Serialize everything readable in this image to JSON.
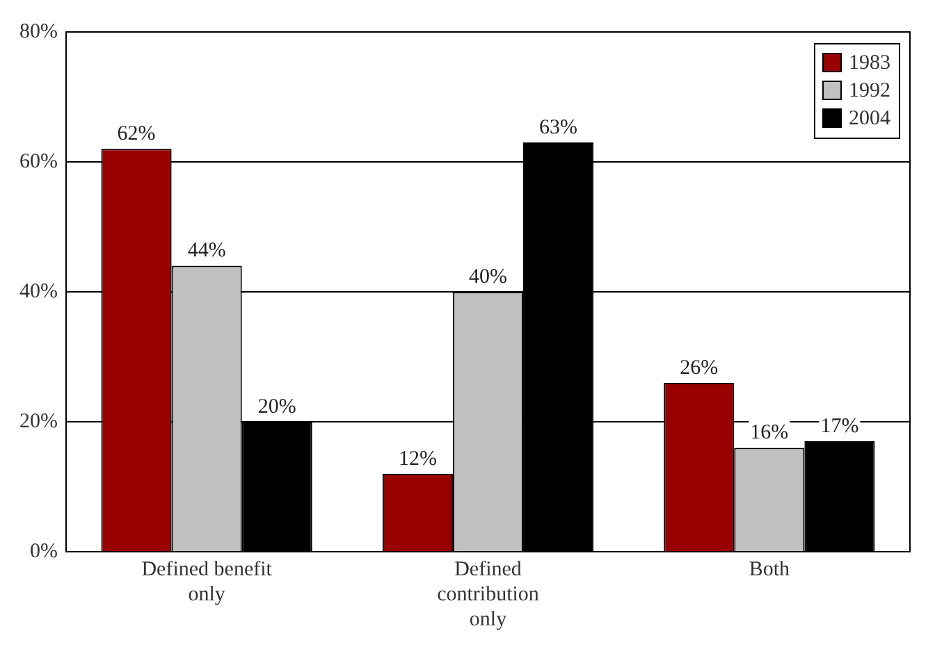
{
  "chart_data": {
    "type": "bar",
    "categories": [
      "Defined benefit only",
      "Defined contribution only",
      "Both"
    ],
    "series": [
      {
        "name": "1983",
        "color": "#990000",
        "values": [
          62,
          12,
          26
        ],
        "value_labels": [
          "62%",
          "12%",
          "26%"
        ]
      },
      {
        "name": "1992",
        "color": "#c0c0c0",
        "values": [
          44,
          40,
          16
        ],
        "value_labels": [
          "44%",
          "40%",
          "16%"
        ]
      },
      {
        "name": "2004",
        "color": "#000000",
        "values": [
          20,
          63,
          17
        ],
        "value_labels": [
          "20%",
          "63%",
          "17%"
        ]
      }
    ],
    "ylim": [
      0,
      80
    ],
    "yticks": [
      {
        "value": 0,
        "label": "0%"
      },
      {
        "value": 20,
        "label": "20%"
      },
      {
        "value": 40,
        "label": "40%"
      },
      {
        "value": 60,
        "label": "60%"
      },
      {
        "value": 80,
        "label": "80%"
      }
    ],
    "grid": "y",
    "legend": "top right"
  }
}
